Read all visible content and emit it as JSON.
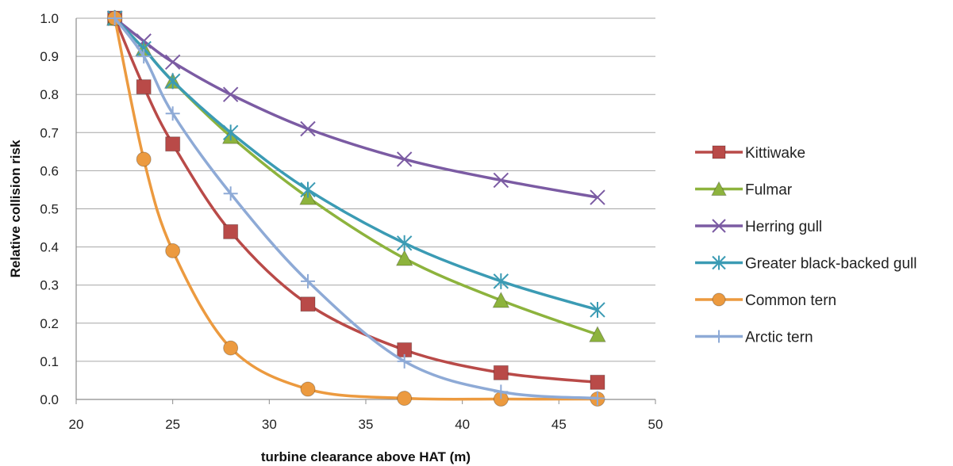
{
  "chart_data": {
    "type": "line",
    "xlabel": "turbine clearance above HAT (m)",
    "ylabel": "Relative collision risk",
    "xlim": [
      20,
      50
    ],
    "ylim": [
      0,
      1.0
    ],
    "xticks": [
      "20",
      "25",
      "30",
      "35",
      "40",
      "45",
      "50"
    ],
    "yticks": [
      "0.0",
      "0.1",
      "0.2",
      "0.3",
      "0.4",
      "0.5",
      "0.6",
      "0.7",
      "0.8",
      "0.9",
      "1.0"
    ],
    "grid": "horizontal",
    "legend_position": "right",
    "x": [
      22,
      23.5,
      25,
      28,
      32,
      37,
      42,
      47
    ],
    "series": [
      {
        "name": "Kittiwake",
        "color": "#b94a48",
        "marker": "square",
        "values": [
          1.0,
          0.82,
          0.67,
          0.44,
          0.25,
          0.13,
          0.07,
          0.045
        ]
      },
      {
        "name": "Fulmar",
        "color": "#8db33d",
        "marker": "triangle",
        "values": [
          1.0,
          0.92,
          0.835,
          0.69,
          0.53,
          0.37,
          0.26,
          0.17
        ]
      },
      {
        "name": "Herring gull",
        "color": "#7b5ba3",
        "marker": "x",
        "values": [
          1.0,
          0.94,
          0.885,
          0.8,
          0.71,
          0.63,
          0.575,
          0.53
        ]
      },
      {
        "name": "Greater black-backed gull",
        "color": "#3b9bb4",
        "marker": "asterisk",
        "values": [
          1.0,
          0.92,
          0.835,
          0.7,
          0.55,
          0.41,
          0.31,
          0.235
        ]
      },
      {
        "name": "Common tern",
        "color": "#ec9a3f",
        "marker": "circle",
        "values": [
          1.0,
          0.63,
          0.39,
          0.135,
          0.027,
          0.003,
          0.001,
          0.001
        ]
      },
      {
        "name": "Arctic tern",
        "color": "#8eaad6",
        "marker": "plus",
        "values": [
          1.0,
          0.9,
          0.75,
          0.54,
          0.31,
          0.1,
          0.02,
          0.003
        ]
      }
    ]
  }
}
